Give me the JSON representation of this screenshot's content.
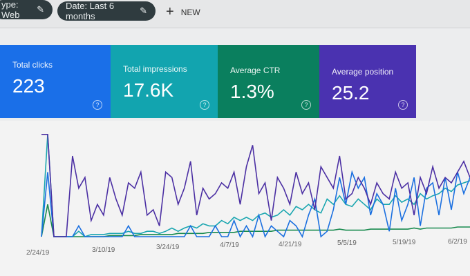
{
  "filters": {
    "type_chip": "ype: Web",
    "date_chip": "Date: Last 6 months",
    "new_label": "NEW"
  },
  "cards": [
    {
      "label": "Total clicks",
      "value": "223",
      "color": "#1a73e8"
    },
    {
      "label": "Total impressions",
      "value": "17.6K",
      "color": "#12a4af"
    },
    {
      "label": "Average CTR",
      "value": "1.3%",
      "color": "#0a7f5e"
    },
    {
      "label": "Average position",
      "value": "25.2",
      "color": "#4a32b0"
    }
  ],
  "chart_data": {
    "type": "line",
    "x_ticks": [
      "2/24/19",
      "3/10/19",
      "3/24/19",
      "4/7/19",
      "4/21/19",
      "5/5/19",
      "5/19/19",
      "6/2/19"
    ],
    "series": [
      {
        "name": "Average position",
        "color": "#4b2fa3",
        "values": [
          95,
          95,
          0,
          0,
          0,
          75,
          45,
          55,
          15,
          30,
          20,
          55,
          35,
          20,
          50,
          45,
          60,
          20,
          25,
          10,
          60,
          55,
          30,
          45,
          70,
          20,
          45,
          35,
          40,
          50,
          45,
          60,
          30,
          65,
          85,
          40,
          50,
          15,
          55,
          45,
          30,
          60,
          40,
          50,
          25,
          65,
          55,
          45,
          75,
          35,
          40,
          55,
          45,
          30,
          50,
          40,
          35,
          60,
          45,
          50,
          20,
          55,
          40,
          65,
          45,
          55,
          50,
          60,
          70,
          55
        ]
      },
      {
        "name": "Total clicks",
        "color": "#1a6fe0",
        "values": [
          0,
          60,
          0,
          0,
          0,
          0,
          10,
          0,
          0,
          0,
          0,
          0,
          0,
          0,
          10,
          0,
          0,
          0,
          0,
          0,
          0,
          0,
          0,
          0,
          10,
          0,
          0,
          0,
          10,
          0,
          0,
          15,
          0,
          10,
          0,
          20,
          0,
          10,
          5,
          0,
          15,
          10,
          0,
          20,
          35,
          0,
          5,
          25,
          55,
          30,
          60,
          45,
          55,
          20,
          40,
          30,
          5,
          45,
          15,
          30,
          55,
          10,
          45,
          50,
          20,
          55,
          25,
          60,
          40,
          55
        ]
      },
      {
        "name": "Total impressions",
        "color": "#1aa6b0",
        "values": [
          0,
          95,
          0,
          0,
          0,
          0,
          5,
          0,
          2,
          2,
          2,
          3,
          3,
          3,
          5,
          3,
          3,
          5,
          5,
          3,
          5,
          8,
          5,
          8,
          10,
          8,
          12,
          10,
          10,
          15,
          12,
          18,
          15,
          18,
          15,
          20,
          22,
          18,
          20,
          25,
          20,
          28,
          25,
          30,
          25,
          22,
          35,
          30,
          38,
          30,
          28,
          35,
          30,
          25,
          35,
          30,
          30,
          38,
          32,
          35,
          30,
          40,
          35,
          38,
          40,
          45,
          42,
          48,
          50,
          52
        ]
      },
      {
        "name": "Average CTR",
        "color": "#188a4e",
        "values": [
          0,
          30,
          0,
          0,
          0,
          0,
          0,
          0,
          0,
          0,
          0,
          1,
          1,
          1,
          1,
          1,
          2,
          2,
          2,
          2,
          2,
          2,
          3,
          3,
          3,
          3,
          3,
          4,
          4,
          4,
          4,
          4,
          5,
          5,
          5,
          5,
          5,
          5,
          6,
          6,
          6,
          6,
          6,
          6,
          6,
          6,
          6,
          6,
          7,
          6,
          6,
          6,
          6,
          7,
          7,
          7,
          7,
          7,
          7,
          7,
          8,
          7,
          8,
          8,
          8,
          8,
          8,
          9,
          9,
          9
        ]
      }
    ],
    "ylim": [
      0,
      100
    ]
  }
}
